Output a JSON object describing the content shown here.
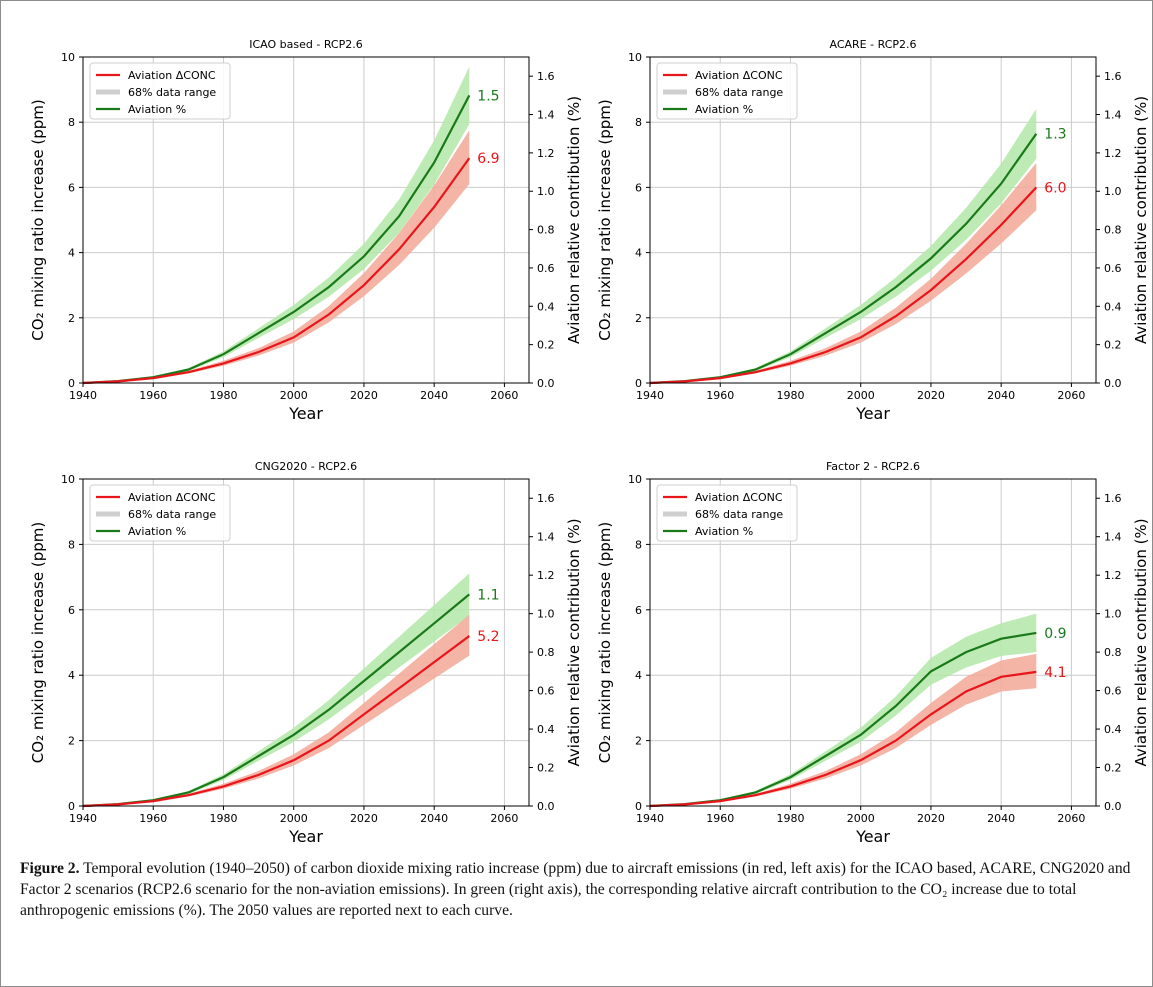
{
  "colors": {
    "red_line": "#e8151b",
    "red_band": "#f2a898",
    "green_line": "#1a7a1a",
    "green_band": "#b3e8a8",
    "legend_gray": "#cfcfcf",
    "grid": "#cccccc"
  },
  "axes_labels": {
    "xlabel": "Year",
    "ylabel_left": "CO₂ mixing ratio increase (ppm)",
    "ylabel_right": "Aviation relative contribution (%)"
  },
  "legend": [
    "Aviation ΔCONC",
    "68% data range",
    "Aviation %"
  ],
  "chart_data": [
    {
      "type": "line",
      "title": "ICAO based - RCP2.6",
      "x": [
        1940,
        1950,
        1960,
        1970,
        1980,
        1990,
        2000,
        2010,
        2020,
        2030,
        2040,
        2050
      ],
      "xlim": [
        1940,
        2067
      ],
      "xticks": [
        1940,
        1960,
        1980,
        2000,
        2020,
        2040,
        2060
      ],
      "ylim": [
        0,
        10
      ],
      "yticks": [
        0,
        2,
        4,
        6,
        8,
        10
      ],
      "y2lim": [
        0,
        1.7
      ],
      "y2ticks": [
        0.0,
        0.2,
        0.4,
        0.6,
        0.8,
        1.0,
        1.2,
        1.4,
        1.6
      ],
      "series": [
        {
          "name": "Aviation ΔCONC",
          "axis": "left",
          "values": [
            0,
            0.05,
            0.15,
            0.33,
            0.6,
            0.95,
            1.4,
            2.1,
            3.0,
            4.1,
            5.4,
            6.9
          ],
          "low": [
            0,
            0.04,
            0.13,
            0.29,
            0.53,
            0.84,
            1.24,
            1.86,
            2.66,
            3.62,
            4.76,
            6.1
          ],
          "high": [
            0,
            0.06,
            0.17,
            0.37,
            0.68,
            1.07,
            1.58,
            2.36,
            3.37,
            4.6,
            6.06,
            7.75
          ],
          "end_label": "6.9"
        },
        {
          "name": "Aviation %",
          "axis": "right",
          "values": [
            0,
            0.01,
            0.03,
            0.07,
            0.15,
            0.26,
            0.37,
            0.5,
            0.66,
            0.87,
            1.15,
            1.5
          ],
          "low": [
            0,
            0.009,
            0.027,
            0.062,
            0.135,
            0.235,
            0.333,
            0.45,
            0.594,
            0.783,
            1.035,
            1.35
          ],
          "high": [
            0,
            0.011,
            0.033,
            0.078,
            0.165,
            0.285,
            0.407,
            0.55,
            0.726,
            0.957,
            1.265,
            1.65
          ],
          "end_label": "1.5"
        }
      ]
    },
    {
      "type": "line",
      "title": "ACARE - RCP2.6",
      "x": [
        1940,
        1950,
        1960,
        1970,
        1980,
        1990,
        2000,
        2010,
        2020,
        2030,
        2040,
        2050
      ],
      "xlim": [
        1940,
        2067
      ],
      "xticks": [
        1940,
        1960,
        1980,
        2000,
        2020,
        2040,
        2060
      ],
      "ylim": [
        0,
        10
      ],
      "yticks": [
        0,
        2,
        4,
        6,
        8,
        10
      ],
      "y2lim": [
        0,
        1.7
      ],
      "y2ticks": [
        0.0,
        0.2,
        0.4,
        0.6,
        0.8,
        1.0,
        1.2,
        1.4,
        1.6
      ],
      "series": [
        {
          "name": "Aviation ΔCONC",
          "axis": "left",
          "values": [
            0,
            0.05,
            0.15,
            0.33,
            0.6,
            0.95,
            1.4,
            2.05,
            2.85,
            3.8,
            4.85,
            6.0
          ],
          "low": [
            0,
            0.04,
            0.13,
            0.29,
            0.53,
            0.84,
            1.24,
            1.81,
            2.52,
            3.36,
            4.28,
            5.3
          ],
          "high": [
            0,
            0.06,
            0.17,
            0.37,
            0.68,
            1.07,
            1.58,
            2.31,
            3.2,
            4.27,
            5.45,
            6.75
          ],
          "end_label": "6.0"
        },
        {
          "name": "Aviation %",
          "axis": "right",
          "values": [
            0,
            0.01,
            0.03,
            0.07,
            0.15,
            0.26,
            0.37,
            0.5,
            0.65,
            0.83,
            1.04,
            1.3
          ],
          "low": [
            0,
            0.009,
            0.027,
            0.062,
            0.135,
            0.235,
            0.333,
            0.45,
            0.585,
            0.747,
            0.936,
            1.17
          ],
          "high": [
            0,
            0.011,
            0.033,
            0.078,
            0.165,
            0.285,
            0.407,
            0.55,
            0.715,
            0.913,
            1.144,
            1.43
          ],
          "end_label": "1.3"
        }
      ]
    },
    {
      "type": "line",
      "title": "CNG2020 - RCP2.6",
      "x": [
        1940,
        1950,
        1960,
        1970,
        1980,
        1990,
        2000,
        2010,
        2020,
        2030,
        2040,
        2050
      ],
      "xlim": [
        1940,
        2067
      ],
      "xticks": [
        1940,
        1960,
        1980,
        2000,
        2020,
        2040,
        2060
      ],
      "ylim": [
        0,
        10
      ],
      "yticks": [
        0,
        2,
        4,
        6,
        8,
        10
      ],
      "y2lim": [
        0,
        1.7
      ],
      "y2ticks": [
        0.0,
        0.2,
        0.4,
        0.6,
        0.8,
        1.0,
        1.2,
        1.4,
        1.6
      ],
      "series": [
        {
          "name": "Aviation ΔCONC",
          "axis": "left",
          "values": [
            0,
            0.05,
            0.15,
            0.33,
            0.6,
            0.95,
            1.4,
            2.0,
            2.8,
            3.6,
            4.4,
            5.2
          ],
          "low": [
            0,
            0.04,
            0.13,
            0.29,
            0.53,
            0.84,
            1.24,
            1.77,
            2.48,
            3.19,
            3.9,
            4.6
          ],
          "high": [
            0,
            0.06,
            0.17,
            0.37,
            0.68,
            1.07,
            1.58,
            2.25,
            3.15,
            4.05,
            4.95,
            5.85
          ],
          "end_label": "5.2"
        },
        {
          "name": "Aviation %",
          "axis": "right",
          "values": [
            0,
            0.01,
            0.03,
            0.07,
            0.15,
            0.26,
            0.37,
            0.5,
            0.65,
            0.8,
            0.95,
            1.1
          ],
          "low": [
            0,
            0.009,
            0.027,
            0.062,
            0.135,
            0.235,
            0.333,
            0.45,
            0.585,
            0.72,
            0.855,
            0.99
          ],
          "high": [
            0,
            0.011,
            0.033,
            0.078,
            0.165,
            0.285,
            0.407,
            0.55,
            0.715,
            0.88,
            1.045,
            1.21
          ],
          "end_label": "1.1"
        }
      ]
    },
    {
      "type": "line",
      "title": "Factor 2 - RCP2.6",
      "x": [
        1940,
        1950,
        1960,
        1970,
        1980,
        1990,
        2000,
        2010,
        2020,
        2030,
        2040,
        2050
      ],
      "xlim": [
        1940,
        2067
      ],
      "xticks": [
        1940,
        1960,
        1980,
        2000,
        2020,
        2040,
        2060
      ],
      "ylim": [
        0,
        10
      ],
      "yticks": [
        0,
        2,
        4,
        6,
        8,
        10
      ],
      "y2lim": [
        0,
        1.7
      ],
      "y2ticks": [
        0.0,
        0.2,
        0.4,
        0.6,
        0.8,
        1.0,
        1.2,
        1.4,
        1.6
      ],
      "series": [
        {
          "name": "Aviation ΔCONC",
          "axis": "left",
          "values": [
            0,
            0.05,
            0.15,
            0.33,
            0.6,
            0.95,
            1.4,
            2.0,
            2.8,
            3.5,
            3.95,
            4.1
          ],
          "low": [
            0,
            0.04,
            0.13,
            0.29,
            0.53,
            0.84,
            1.24,
            1.77,
            2.48,
            3.1,
            3.5,
            3.6
          ],
          "high": [
            0,
            0.06,
            0.17,
            0.37,
            0.68,
            1.07,
            1.58,
            2.25,
            3.15,
            3.95,
            4.45,
            4.65
          ],
          "end_label": "4.1"
        },
        {
          "name": "Aviation %",
          "axis": "right",
          "values": [
            0,
            0.01,
            0.03,
            0.07,
            0.15,
            0.26,
            0.37,
            0.52,
            0.7,
            0.8,
            0.87,
            0.9
          ],
          "low": [
            0,
            0.009,
            0.027,
            0.062,
            0.135,
            0.235,
            0.333,
            0.47,
            0.63,
            0.72,
            0.78,
            0.8
          ],
          "high": [
            0,
            0.011,
            0.033,
            0.078,
            0.165,
            0.285,
            0.407,
            0.57,
            0.77,
            0.88,
            0.95,
            1.0
          ],
          "end_label": "0.9"
        }
      ]
    }
  ],
  "caption": {
    "label": "Figure 2.",
    "text": " Temporal evolution (1940–2050) of carbon dioxide mixing ratio increase (ppm) due to aircraft emissions (in red, left axis) for the ICAO based, ACARE, CNG2020 and Factor 2 scenarios (RCP2.6 scenario for the non-aviation emissions). In green (right axis), the corresponding relative aircraft contribution to the CO₂ increase due to total anthropogenic emissions (%). The 2050 values are reported next to each curve."
  }
}
